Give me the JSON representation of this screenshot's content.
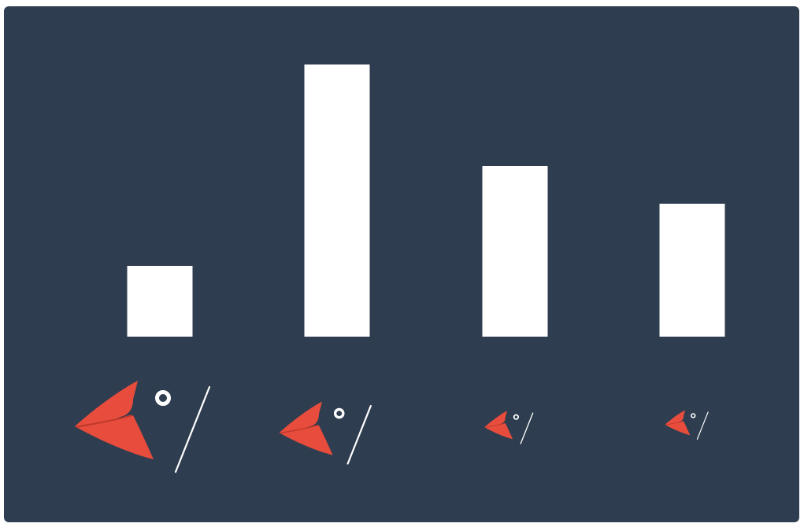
{
  "colors": {
    "background": "#2e3d4f",
    "bar": "#ffffff",
    "beak": "#e74c3c",
    "eye": "#ffffff",
    "stroke": "#ffffff"
  },
  "chart_data": {
    "type": "bar",
    "title": "",
    "xlabel": "",
    "ylabel": "",
    "categories": [
      "beak-large",
      "beak-medium-large",
      "beak-small",
      "beak-tiny"
    ],
    "values": [
      90,
      346,
      217,
      169
    ],
    "ylim": [
      0,
      380
    ],
    "grid": false,
    "legend": "none",
    "category_icon": "bird-beak-icon"
  }
}
